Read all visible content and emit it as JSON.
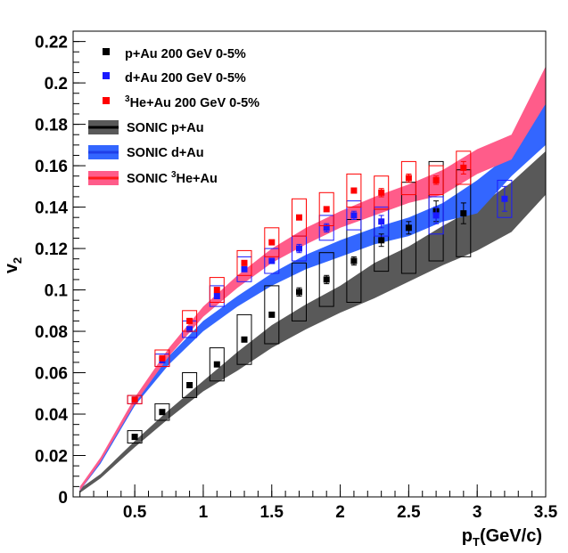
{
  "chart_data": {
    "type": "scatter",
    "xlabel": "pT(GeV/c)",
    "ylabel": "v2",
    "xlim": [
      0.05,
      3.5
    ],
    "ylim": [
      0,
      0.225
    ],
    "xticks": [
      0.5,
      1,
      1.5,
      2,
      2.5,
      3,
      3.5
    ],
    "xtick_labels": [
      "0.5",
      "1",
      "1.5",
      "2",
      "2.5",
      "3",
      "3.5"
    ],
    "yticks": [
      0,
      0.02,
      0.04,
      0.06,
      0.08,
      0.1,
      0.12,
      0.14,
      0.16,
      0.18,
      0.2,
      0.22
    ],
    "ytick_labels": [
      "0",
      "0.02",
      "0.04",
      "0.06",
      "0.08",
      "0.1",
      "0.12",
      "0.14",
      "0.16",
      "0.18",
      "0.2",
      "0.22"
    ],
    "grid": false,
    "legend_position": "top-left",
    "series": [
      {
        "name": "p+Au 200 GeV 0-5%",
        "kind": "points",
        "color": "#000000",
        "points": [
          {
            "x": 0.5,
            "y": 0.029,
            "stat": 0.001,
            "sys": 0.003
          },
          {
            "x": 0.7,
            "y": 0.041,
            "stat": 0.001,
            "sys": 0.004
          },
          {
            "x": 0.9,
            "y": 0.054,
            "stat": 0.001,
            "sys": 0.006
          },
          {
            "x": 1.1,
            "y": 0.064,
            "stat": 0.001,
            "sys": 0.008
          },
          {
            "x": 1.3,
            "y": 0.076,
            "stat": 0.001,
            "sys": 0.012
          },
          {
            "x": 1.5,
            "y": 0.088,
            "stat": 0.001,
            "sys": 0.014
          },
          {
            "x": 1.7,
            "y": 0.099,
            "stat": 0.002,
            "sys": 0.014
          },
          {
            "x": 1.9,
            "y": 0.105,
            "stat": 0.002,
            "sys": 0.013
          },
          {
            "x": 2.1,
            "y": 0.114,
            "stat": 0.002,
            "sys": 0.02
          },
          {
            "x": 2.3,
            "y": 0.124,
            "stat": 0.003,
            "sys": 0.015
          },
          {
            "x": 2.5,
            "y": 0.13,
            "stat": 0.003,
            "sys": 0.022
          },
          {
            "x": 2.7,
            "y": 0.138,
            "stat": 0.005,
            "sys": 0.024
          },
          {
            "x": 2.9,
            "y": 0.137,
            "stat": 0.005,
            "sys": 0.021
          }
        ]
      },
      {
        "name": "d+Au 200 GeV 0-5%",
        "kind": "points",
        "color": "#1a1aff",
        "points": [
          {
            "x": 0.5,
            "y": 0.047,
            "stat": 0.001,
            "sys": 0.002
          },
          {
            "x": 0.7,
            "y": 0.066,
            "stat": 0.001,
            "sys": 0.003
          },
          {
            "x": 0.9,
            "y": 0.081,
            "stat": 0.001,
            "sys": 0.004
          },
          {
            "x": 1.1,
            "y": 0.097,
            "stat": 0.001,
            "sys": 0.005
          },
          {
            "x": 1.3,
            "y": 0.11,
            "stat": 0.001,
            "sys": 0.006
          },
          {
            "x": 1.5,
            "y": 0.114,
            "stat": 0.001,
            "sys": 0.006
          },
          {
            "x": 1.7,
            "y": 0.12,
            "stat": 0.002,
            "sys": 0.006
          },
          {
            "x": 1.9,
            "y": 0.13,
            "stat": 0.002,
            "sys": 0.006
          },
          {
            "x": 2.1,
            "y": 0.136,
            "stat": 0.002,
            "sys": 0.007
          },
          {
            "x": 2.3,
            "y": 0.133,
            "stat": 0.003,
            "sys": 0.007
          },
          {
            "x": 2.7,
            "y": 0.136,
            "stat": 0.004,
            "sys": 0.009
          },
          {
            "x": 3.2,
            "y": 0.144,
            "stat": 0.006,
            "sys": 0.009
          }
        ]
      },
      {
        "name": "3He+Au 200 GeV 0-5%",
        "kind": "points",
        "color": "#ff0000",
        "points": [
          {
            "x": 0.5,
            "y": 0.047,
            "stat": 0.001,
            "sys": 0.002
          },
          {
            "x": 0.7,
            "y": 0.067,
            "stat": 0.001,
            "sys": 0.004
          },
          {
            "x": 0.9,
            "y": 0.085,
            "stat": 0.001,
            "sys": 0.005
          },
          {
            "x": 1.1,
            "y": 0.1,
            "stat": 0.001,
            "sys": 0.006
          },
          {
            "x": 1.3,
            "y": 0.113,
            "stat": 0.001,
            "sys": 0.006
          },
          {
            "x": 1.5,
            "y": 0.123,
            "stat": 0.001,
            "sys": 0.007
          },
          {
            "x": 1.7,
            "y": 0.135,
            "stat": 0.001,
            "sys": 0.009
          },
          {
            "x": 1.9,
            "y": 0.139,
            "stat": 0.001,
            "sys": 0.008
          },
          {
            "x": 2.1,
            "y": 0.148,
            "stat": 0.001,
            "sys": 0.008
          },
          {
            "x": 2.3,
            "y": 0.147,
            "stat": 0.002,
            "sys": 0.008
          },
          {
            "x": 2.5,
            "y": 0.154,
            "stat": 0.002,
            "sys": 0.008
          },
          {
            "x": 2.7,
            "y": 0.153,
            "stat": 0.002,
            "sys": 0.007
          },
          {
            "x": 2.9,
            "y": 0.159,
            "stat": 0.003,
            "sys": 0.008
          }
        ]
      },
      {
        "name": "SONIC p+Au",
        "kind": "band",
        "color": "#595959",
        "x": [
          0.1,
          0.25,
          0.5,
          0.75,
          1.0,
          1.25,
          1.5,
          1.75,
          2.0,
          2.25,
          2.5,
          2.75,
          3.0,
          3.25,
          3.5
        ],
        "low": [
          0.002,
          0.009,
          0.024,
          0.038,
          0.051,
          0.061,
          0.072,
          0.081,
          0.089,
          0.096,
          0.104,
          0.112,
          0.119,
          0.128,
          0.146
        ],
        "high": [
          0.004,
          0.011,
          0.027,
          0.042,
          0.056,
          0.07,
          0.083,
          0.093,
          0.102,
          0.113,
          0.121,
          0.131,
          0.14,
          0.152,
          0.167
        ]
      },
      {
        "name": "SONIC d+Au",
        "kind": "band",
        "color": "#3366ff",
        "x": [
          0.1,
          0.25,
          0.5,
          0.75,
          1.0,
          1.25,
          1.5,
          1.75,
          2.0,
          2.25,
          2.5,
          2.75,
          3.0,
          3.25,
          3.5
        ],
        "low": [
          0.003,
          0.016,
          0.044,
          0.064,
          0.08,
          0.092,
          0.102,
          0.11,
          0.116,
          0.122,
          0.126,
          0.133,
          0.137,
          0.155,
          0.17
        ],
        "high": [
          0.005,
          0.018,
          0.047,
          0.068,
          0.085,
          0.097,
          0.108,
          0.117,
          0.124,
          0.13,
          0.135,
          0.142,
          0.153,
          0.166,
          0.19
        ]
      },
      {
        "name": "SONIC 3He+Au",
        "kind": "band",
        "color": "#ff5c8a",
        "x": [
          0.1,
          0.25,
          0.5,
          0.75,
          1.0,
          1.25,
          1.5,
          1.75,
          2.0,
          2.25,
          2.5,
          2.75,
          3.0,
          3.25,
          3.5
        ],
        "low": [
          0.003,
          0.017,
          0.045,
          0.068,
          0.087,
          0.101,
          0.113,
          0.122,
          0.13,
          0.136,
          0.142,
          0.146,
          0.156,
          0.163,
          0.19
        ],
        "high": [
          0.005,
          0.019,
          0.048,
          0.072,
          0.092,
          0.107,
          0.12,
          0.13,
          0.138,
          0.145,
          0.151,
          0.158,
          0.168,
          0.175,
          0.208
        ]
      }
    ]
  },
  "legend": {
    "items": [
      {
        "type": "marker",
        "color": "#000000",
        "prefix": "",
        "sup": "",
        "text": "p+Au 200 GeV 0-5%"
      },
      {
        "type": "marker",
        "color": "#1a1aff",
        "prefix": "",
        "sup": "",
        "text": "d+Au 200 GeV 0-5%"
      },
      {
        "type": "marker",
        "color": "#ff0000",
        "prefix": "",
        "sup": "3",
        "text": "He+Au 200 GeV 0-5%"
      },
      {
        "type": "band",
        "color": "#595959",
        "line": "#000000",
        "prefix": "SONIC p+Au",
        "sup": "",
        "text": ""
      },
      {
        "type": "band",
        "color": "#3366ff",
        "line": "#1f3fe8",
        "prefix": "SONIC d+Au",
        "sup": "",
        "text": ""
      },
      {
        "type": "band",
        "color": "#ff5c8a",
        "line": "#ff1a1a",
        "prefix": "SONIC ",
        "sup": "3",
        "text": "He+Au"
      }
    ]
  }
}
